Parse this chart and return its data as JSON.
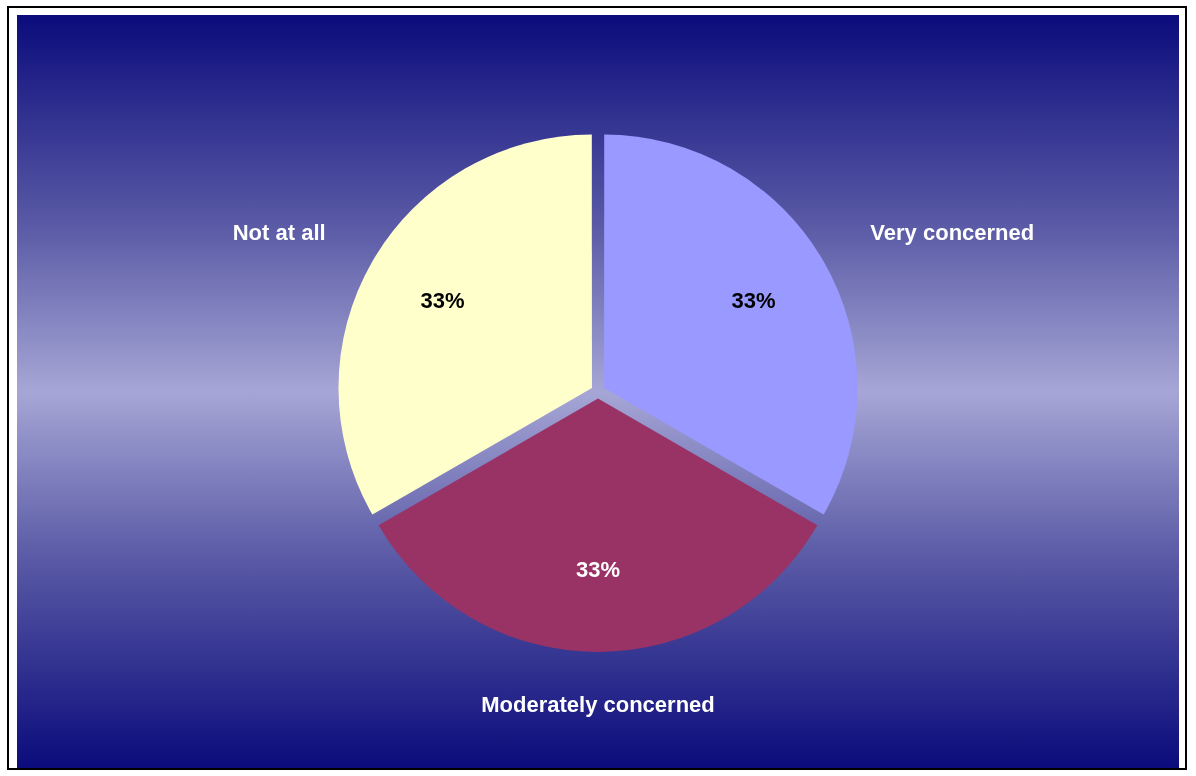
{
  "chart_data": {
    "type": "pie",
    "categories": [
      "Very concerned",
      "Moderately concerned",
      "Not at all"
    ],
    "values": [
      33,
      33,
      33
    ],
    "colors": [
      "#9999ff",
      "#993366",
      "#ffffcc"
    ],
    "value_labels": [
      "33%",
      "33%",
      "33%"
    ]
  }
}
